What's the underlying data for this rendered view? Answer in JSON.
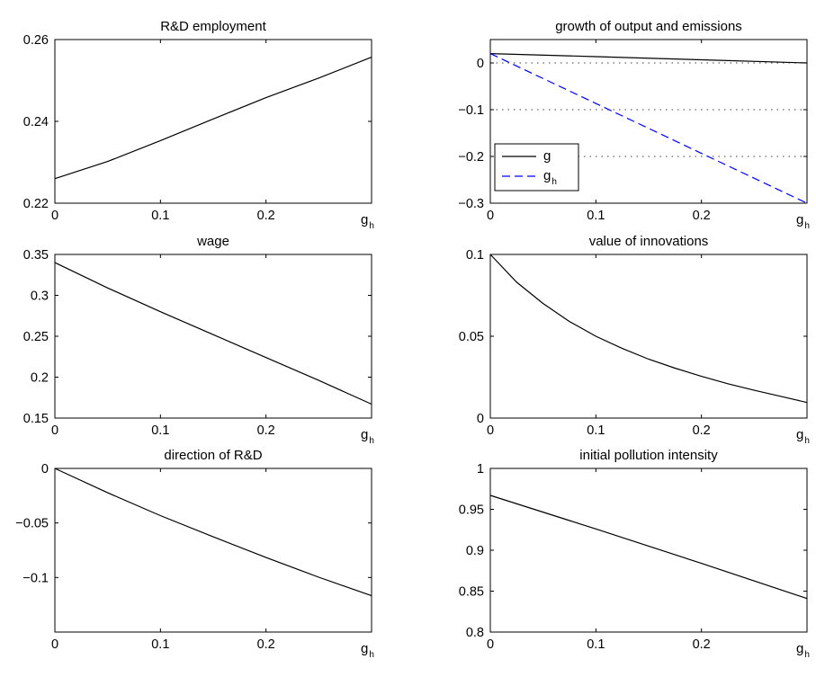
{
  "chart_data": [
    {
      "type": "line",
      "title": "R&D employment",
      "xlabel": "g",
      "xlabel_sub": "h",
      "xlim": [
        0,
        0.3
      ],
      "ylim": [
        0.22,
        0.26
      ],
      "xticks": [
        0,
        0.1,
        0.2
      ],
      "yticks": [
        0.22,
        0.24,
        0.26
      ],
      "grid": false,
      "series": [
        {
          "color": "#000000",
          "dash": "solid",
          "x": [
            0,
            0.05,
            0.1,
            0.15,
            0.2,
            0.25,
            0.3
          ],
          "y": [
            0.226,
            0.2302,
            0.2353,
            0.2406,
            0.2458,
            0.2506,
            0.2557
          ]
        }
      ]
    },
    {
      "type": "line",
      "title": "growth of output and emissions",
      "xlabel": "g",
      "xlabel_sub": "h",
      "xlim": [
        0,
        0.3
      ],
      "ylim": [
        -0.3,
        0.05
      ],
      "xticks": [
        0,
        0.1,
        0.2
      ],
      "yticks": [
        -0.3,
        -0.2,
        -0.1,
        0
      ],
      "grid": "dotted horizontal at y = 0, -0.1, -0.2",
      "legend": "bottom-left",
      "series": [
        {
          "name": "g",
          "color": "#000000",
          "dash": "solid",
          "x": [
            0,
            0.1,
            0.2,
            0.3
          ],
          "y": [
            0.02,
            0.0135,
            0.0068,
            0.0
          ]
        },
        {
          "name": "g",
          "name_sub": "h",
          "color": "#0000ff",
          "dash": "dashed",
          "x": [
            0,
            0.3
          ],
          "y": [
            0.02,
            -0.3
          ]
        }
      ]
    },
    {
      "type": "line",
      "title": "wage",
      "xlabel": "g",
      "xlabel_sub": "h",
      "xlim": [
        0,
        0.3
      ],
      "ylim": [
        0.15,
        0.35
      ],
      "xticks": [
        0,
        0.1,
        0.2
      ],
      "yticks": [
        0.15,
        0.2,
        0.25,
        0.3,
        0.35
      ],
      "grid": false,
      "series": [
        {
          "color": "#000000",
          "dash": "solid",
          "x": [
            0,
            0.05,
            0.1,
            0.15,
            0.2,
            0.25,
            0.3
          ],
          "y": [
            0.34,
            0.309,
            0.28,
            0.252,
            0.224,
            0.196,
            0.167
          ]
        }
      ]
    },
    {
      "type": "line",
      "title": "value of innovations",
      "xlabel": "g",
      "xlabel_sub": "h",
      "xlim": [
        0,
        0.3
      ],
      "ylim": [
        0,
        0.1
      ],
      "xticks": [
        0,
        0.1,
        0.2
      ],
      "yticks": [
        0,
        0.05,
        0.1
      ],
      "grid": false,
      "series": [
        {
          "color": "#000000",
          "dash": "solid",
          "x": [
            0,
            0.025,
            0.05,
            0.075,
            0.1,
            0.125,
            0.15,
            0.175,
            0.2,
            0.225,
            0.25,
            0.275,
            0.3
          ],
          "y": [
            0.1,
            0.083,
            0.07,
            0.059,
            0.05,
            0.0425,
            0.036,
            0.0305,
            0.0255,
            0.021,
            0.017,
            0.0133,
            0.0095
          ]
        }
      ]
    },
    {
      "type": "line",
      "title": "direction of R&D",
      "xlabel": "g",
      "xlabel_sub": "h",
      "xlim": [
        0,
        0.3
      ],
      "ylim": [
        -0.15,
        0
      ],
      "xticks": [
        0,
        0.1,
        0.2
      ],
      "yticks": [
        -0.1,
        -0.05,
        0
      ],
      "ytick_labels": [
        "−0.1",
        "−0.05",
        "0"
      ],
      "grid": false,
      "series": [
        {
          "color": "#000000",
          "dash": "solid",
          "x": [
            0,
            0.05,
            0.1,
            0.15,
            0.2,
            0.25,
            0.3
          ],
          "y": [
            0,
            -0.0223,
            -0.0433,
            -0.0627,
            -0.0817,
            -0.0997,
            -0.1167
          ]
        }
      ]
    },
    {
      "type": "line",
      "title": "initial pollution intensity",
      "xlabel": "g",
      "xlabel_sub": "h",
      "xlim": [
        0,
        0.3
      ],
      "ylim": [
        0.8,
        1
      ],
      "xticks": [
        0,
        0.1,
        0.2
      ],
      "yticks": [
        0.8,
        0.85,
        0.9,
        0.95,
        1
      ],
      "grid": false,
      "series": [
        {
          "color": "#000000",
          "dash": "solid",
          "x": [
            0,
            0.1,
            0.2,
            0.3
          ],
          "y": [
            0.967,
            0.926,
            0.884,
            0.841
          ]
        }
      ]
    }
  ]
}
